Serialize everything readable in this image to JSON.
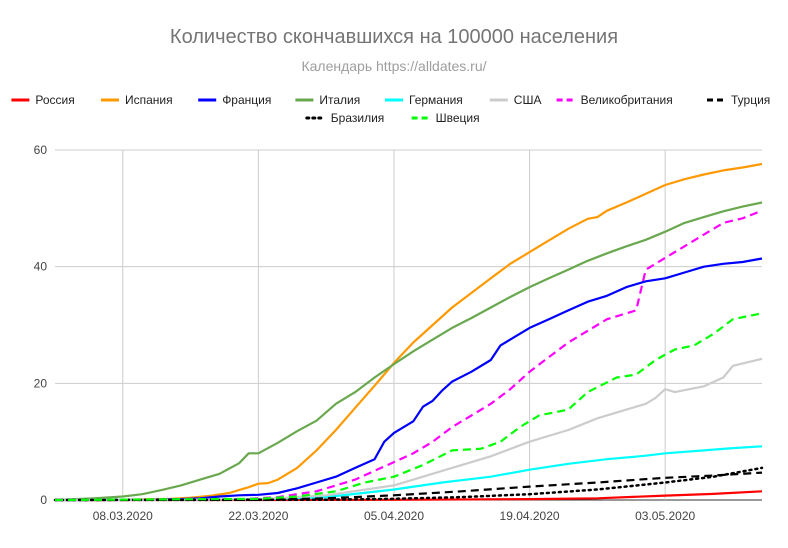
{
  "chart_data": {
    "type": "line",
    "title": "Количество скончавшихся на 100000 населения",
    "subtitle": "Календарь https://alldates.ru/",
    "xlabel": "",
    "ylabel": "",
    "ylim": [
      0,
      60
    ],
    "y_ticks": [
      "0",
      "20",
      "40",
      "60"
    ],
    "x_range": [
      "2020-03-01",
      "2020-05-13"
    ],
    "x_ticks": [
      {
        "date": "2020-03-08",
        "label": "08.03.2020"
      },
      {
        "date": "2020-03-22",
        "label": "22.03.2020"
      },
      {
        "date": "2020-04-05",
        "label": "05.04.2020"
      },
      {
        "date": "2020-04-19",
        "label": "19.04.2020"
      },
      {
        "date": "2020-05-03",
        "label": "03.05.2020"
      }
    ],
    "grid": true,
    "legend_position": "top",
    "series": [
      {
        "name": "Россия",
        "color": "#ff0000",
        "style": "solid",
        "points": [
          [
            "2020-03-01",
            0
          ],
          [
            "2020-03-22",
            0
          ],
          [
            "2020-04-05",
            0.03
          ],
          [
            "2020-04-19",
            0.15
          ],
          [
            "2020-04-26",
            0.3
          ],
          [
            "2020-05-03",
            0.75
          ],
          [
            "2020-05-08",
            1.05
          ],
          [
            "2020-05-13",
            1.5
          ]
        ]
      },
      {
        "name": "Испания",
        "color": "#ff9900",
        "style": "solid",
        "points": [
          [
            "2020-03-01",
            0
          ],
          [
            "2020-03-08",
            0.05
          ],
          [
            "2020-03-13",
            0.2
          ],
          [
            "2020-03-15",
            0.4
          ],
          [
            "2020-03-17",
            0.7
          ],
          [
            "2020-03-19",
            1.2
          ],
          [
            "2020-03-20",
            1.7
          ],
          [
            "2020-03-21",
            2.2
          ],
          [
            "2020-03-22",
            2.8
          ],
          [
            "2020-03-23",
            2.9
          ],
          [
            "2020-03-24",
            3.5
          ],
          [
            "2020-03-26",
            5.5
          ],
          [
            "2020-03-28",
            8.5
          ],
          [
            "2020-03-30",
            12
          ],
          [
            "2020-04-01",
            15.8
          ],
          [
            "2020-04-03",
            19.6
          ],
          [
            "2020-04-05",
            23.5
          ],
          [
            "2020-04-07",
            27
          ],
          [
            "2020-04-09",
            30
          ],
          [
            "2020-04-11",
            33
          ],
          [
            "2020-04-13",
            35.5
          ],
          [
            "2020-04-15",
            38
          ],
          [
            "2020-04-17",
            40.5
          ],
          [
            "2020-04-19",
            42.5
          ],
          [
            "2020-04-21",
            44.5
          ],
          [
            "2020-04-23",
            46.5
          ],
          [
            "2020-04-25",
            48.2
          ],
          [
            "2020-04-26",
            48.5
          ],
          [
            "2020-04-27",
            49.6
          ],
          [
            "2020-04-29",
            51
          ],
          [
            "2020-05-01",
            52.5
          ],
          [
            "2020-05-03",
            54
          ],
          [
            "2020-05-05",
            55
          ],
          [
            "2020-05-07",
            55.8
          ],
          [
            "2020-05-09",
            56.5
          ],
          [
            "2020-05-11",
            57
          ],
          [
            "2020-05-13",
            57.6
          ]
        ]
      },
      {
        "name": "Франция",
        "color": "#0000ff",
        "style": "solid",
        "points": [
          [
            "2020-03-01",
            0
          ],
          [
            "2020-03-08",
            0.02
          ],
          [
            "2020-03-14",
            0.15
          ],
          [
            "2020-03-16",
            0.3
          ],
          [
            "2020-03-18",
            0.6
          ],
          [
            "2020-03-20",
            0.8
          ],
          [
            "2020-03-22",
            0.9
          ],
          [
            "2020-03-24",
            1.2
          ],
          [
            "2020-03-26",
            2
          ],
          [
            "2020-03-28",
            3
          ],
          [
            "2020-03-30",
            4
          ],
          [
            "2020-04-01",
            5.5
          ],
          [
            "2020-04-03",
            7
          ],
          [
            "2020-04-04",
            10
          ],
          [
            "2020-04-05",
            11.5
          ],
          [
            "2020-04-06",
            12.5
          ],
          [
            "2020-04-07",
            13.5
          ],
          [
            "2020-04-08",
            16
          ],
          [
            "2020-04-09",
            17
          ],
          [
            "2020-04-10",
            18.8
          ],
          [
            "2020-04-11",
            20.3
          ],
          [
            "2020-04-13",
            22
          ],
          [
            "2020-04-15",
            24
          ],
          [
            "2020-04-16",
            26.5
          ],
          [
            "2020-04-17",
            27.5
          ],
          [
            "2020-04-19",
            29.5
          ],
          [
            "2020-04-21",
            31
          ],
          [
            "2020-04-23",
            32.5
          ],
          [
            "2020-04-25",
            34
          ],
          [
            "2020-04-27",
            35
          ],
          [
            "2020-04-29",
            36.5
          ],
          [
            "2020-05-01",
            37.5
          ],
          [
            "2020-05-03",
            38
          ],
          [
            "2020-05-05",
            39
          ],
          [
            "2020-05-07",
            40
          ],
          [
            "2020-05-09",
            40.5
          ],
          [
            "2020-05-11",
            40.8
          ],
          [
            "2020-05-13",
            41.4
          ]
        ]
      },
      {
        "name": "Италия",
        "color": "#6aa84f",
        "style": "solid",
        "points": [
          [
            "2020-03-01",
            0
          ],
          [
            "2020-03-05",
            0.3
          ],
          [
            "2020-03-08",
            0.6
          ],
          [
            "2020-03-10",
            1
          ],
          [
            "2020-03-12",
            1.7
          ],
          [
            "2020-03-14",
            2.5
          ],
          [
            "2020-03-16",
            3.5
          ],
          [
            "2020-03-18",
            4.5
          ],
          [
            "2020-03-19",
            5.4
          ],
          [
            "2020-03-20",
            6.3
          ],
          [
            "2020-03-21",
            8
          ],
          [
            "2020-03-22",
            8
          ],
          [
            "2020-03-24",
            9.8
          ],
          [
            "2020-03-26",
            11.8
          ],
          [
            "2020-03-28",
            13.6
          ],
          [
            "2020-03-30",
            16.5
          ],
          [
            "2020-04-01",
            18.5
          ],
          [
            "2020-04-03",
            21
          ],
          [
            "2020-04-05",
            23.3
          ],
          [
            "2020-04-07",
            25.5
          ],
          [
            "2020-04-09",
            27.5
          ],
          [
            "2020-04-11",
            29.5
          ],
          [
            "2020-04-13",
            31.2
          ],
          [
            "2020-04-15",
            33
          ],
          [
            "2020-04-17",
            34.8
          ],
          [
            "2020-04-19",
            36.5
          ],
          [
            "2020-04-21",
            38
          ],
          [
            "2020-04-23",
            39.5
          ],
          [
            "2020-04-25",
            41
          ],
          [
            "2020-04-27",
            42.3
          ],
          [
            "2020-04-29",
            43.5
          ],
          [
            "2020-05-01",
            44.6
          ],
          [
            "2020-05-03",
            46
          ],
          [
            "2020-05-05",
            47.5
          ],
          [
            "2020-05-07",
            48.5
          ],
          [
            "2020-05-09",
            49.5
          ],
          [
            "2020-05-11",
            50.3
          ],
          [
            "2020-05-13",
            51
          ]
        ]
      },
      {
        "name": "Германия",
        "color": "#00ffff",
        "style": "solid",
        "points": [
          [
            "2020-03-01",
            0
          ],
          [
            "2020-03-22",
            0.1
          ],
          [
            "2020-03-29",
            0.5
          ],
          [
            "2020-04-05",
            1.8
          ],
          [
            "2020-04-10",
            3
          ],
          [
            "2020-04-15",
            4
          ],
          [
            "2020-04-19",
            5.2
          ],
          [
            "2020-04-23",
            6.2
          ],
          [
            "2020-04-27",
            7
          ],
          [
            "2020-05-01",
            7.6
          ],
          [
            "2020-05-03",
            8
          ],
          [
            "2020-05-07",
            8.5
          ],
          [
            "2020-05-10",
            8.9
          ],
          [
            "2020-05-13",
            9.2
          ]
        ]
      },
      {
        "name": "США",
        "color": "#cccccc",
        "style": "solid",
        "points": [
          [
            "2020-03-01",
            0
          ],
          [
            "2020-03-22",
            0.1
          ],
          [
            "2020-03-29",
            0.8
          ],
          [
            "2020-04-05",
            2.5
          ],
          [
            "2020-04-10",
            5
          ],
          [
            "2020-04-15",
            7.5
          ],
          [
            "2020-04-19",
            10
          ],
          [
            "2020-04-23",
            12
          ],
          [
            "2020-04-26",
            14
          ],
          [
            "2020-04-29",
            15.5
          ],
          [
            "2020-05-01",
            16.5
          ],
          [
            "2020-05-02",
            17.5
          ],
          [
            "2020-05-03",
            19
          ],
          [
            "2020-05-04",
            18.5
          ],
          [
            "2020-05-07",
            19.5
          ],
          [
            "2020-05-09",
            21
          ],
          [
            "2020-05-10",
            23
          ],
          [
            "2020-05-13",
            24.2
          ]
        ]
      },
      {
        "name": "Великобритания",
        "color": "#ff00ff",
        "style": "dashed",
        "points": [
          [
            "2020-03-01",
            0
          ],
          [
            "2020-03-20",
            0.1
          ],
          [
            "2020-03-24",
            0.5
          ],
          [
            "2020-03-28",
            1.5
          ],
          [
            "2020-04-01",
            3.5
          ],
          [
            "2020-04-03",
            5
          ],
          [
            "2020-04-05",
            6.5
          ],
          [
            "2020-04-07",
            8
          ],
          [
            "2020-04-09",
            10
          ],
          [
            "2020-04-11",
            12.5
          ],
          [
            "2020-04-13",
            14.5
          ],
          [
            "2020-04-15",
            16.5
          ],
          [
            "2020-04-17",
            19
          ],
          [
            "2020-04-19",
            22
          ],
          [
            "2020-04-21",
            24.5
          ],
          [
            "2020-04-23",
            27
          ],
          [
            "2020-04-25",
            29
          ],
          [
            "2020-04-27",
            31
          ],
          [
            "2020-04-30",
            32.5
          ],
          [
            "2020-05-01",
            39.5
          ],
          [
            "2020-05-03",
            41.5
          ],
          [
            "2020-05-05",
            43.5
          ],
          [
            "2020-05-07",
            45.5
          ],
          [
            "2020-05-09",
            47.5
          ],
          [
            "2020-05-11",
            48.3
          ],
          [
            "2020-05-13",
            49.6
          ]
        ]
      },
      {
        "name": "Турция",
        "color": "#000000",
        "style": "dashed",
        "points": [
          [
            "2020-03-01",
            0
          ],
          [
            "2020-03-22",
            0.02
          ],
          [
            "2020-03-29",
            0.3
          ],
          [
            "2020-04-05",
            0.8
          ],
          [
            "2020-04-12",
            1.5
          ],
          [
            "2020-04-19",
            2.3
          ],
          [
            "2020-04-26",
            3
          ],
          [
            "2020-05-03",
            3.8
          ],
          [
            "2020-05-08",
            4.2
          ],
          [
            "2020-05-13",
            4.7
          ]
        ]
      },
      {
        "name": "Бразилия",
        "color": "#000000",
        "style": "dotted",
        "points": [
          [
            "2020-03-01",
            0
          ],
          [
            "2020-03-29",
            0.05
          ],
          [
            "2020-04-05",
            0.2
          ],
          [
            "2020-04-12",
            0.5
          ],
          [
            "2020-04-19",
            1
          ],
          [
            "2020-04-26",
            1.8
          ],
          [
            "2020-05-03",
            3
          ],
          [
            "2020-05-08",
            4
          ],
          [
            "2020-05-13",
            5.5
          ]
        ]
      },
      {
        "name": "Швеция",
        "color": "#00ff00",
        "style": "dashed",
        "points": [
          [
            "2020-03-01",
            0
          ],
          [
            "2020-03-22",
            0.2
          ],
          [
            "2020-03-26",
            0.6
          ],
          [
            "2020-03-30",
            1.5
          ],
          [
            "2020-04-02",
            3
          ],
          [
            "2020-04-05",
            4
          ],
          [
            "2020-04-08",
            6
          ],
          [
            "2020-04-11",
            8.5
          ],
          [
            "2020-04-14",
            8.8
          ],
          [
            "2020-04-16",
            10
          ],
          [
            "2020-04-18",
            12.5
          ],
          [
            "2020-04-20",
            14.5
          ],
          [
            "2020-04-23",
            15.5
          ],
          [
            "2020-04-25",
            18.5
          ],
          [
            "2020-04-28",
            21
          ],
          [
            "2020-04-30",
            21.5
          ],
          [
            "2020-05-02",
            24
          ],
          [
            "2020-05-04",
            25.8
          ],
          [
            "2020-05-06",
            26.5
          ],
          [
            "2020-05-08",
            28.5
          ],
          [
            "2020-05-10",
            31
          ],
          [
            "2020-05-13",
            32
          ]
        ]
      }
    ]
  }
}
